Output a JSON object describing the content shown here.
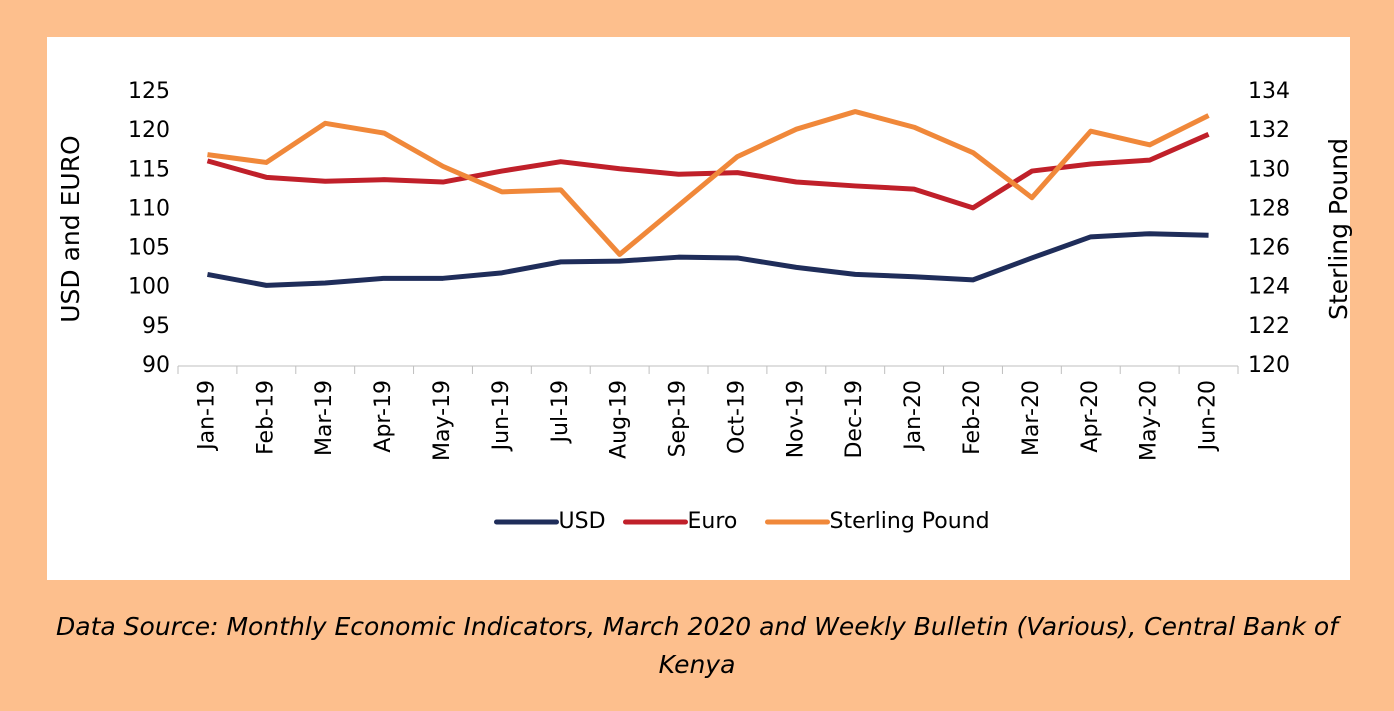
{
  "chart_data": {
    "type": "line",
    "y_label": "USD and EURO",
    "y2_label": "Sterling Pound",
    "categories": [
      "Jan-19",
      "Feb-19",
      "Mar-19",
      "Apr-19",
      "May-19",
      "Jun-19",
      "Jul-19",
      "Aug-19",
      "Sep-19",
      "Oct-19",
      "Nov-19",
      "Dec-19",
      "Jan-20",
      "Feb-20",
      "Mar-20",
      "Apr-20",
      "May-20",
      "Jun-20"
    ],
    "series": [
      {
        "name": "USD",
        "color": "#1f2d5a",
        "values": [
          101.7,
          100.3,
          100.6,
          101.2,
          101.2,
          101.9,
          103.3,
          103.4,
          103.9,
          103.8,
          102.6,
          101.7,
          101.4,
          101.0,
          103.8,
          106.5,
          106.9,
          106.7
        ]
      },
      {
        "name": "Euro",
        "color": "#c0202a",
        "values": [
          116.2,
          114.1,
          113.6,
          113.8,
          113.5,
          114.9,
          116.1,
          115.2,
          114.5,
          114.7,
          113.5,
          113.0,
          112.6,
          110.2,
          114.9,
          115.8,
          116.3,
          119.6
        ]
      },
      {
        "name": "Sterling Pound",
        "color": "#f0883a",
        "axis": "y2",
        "values": [
          130.8,
          130.4,
          132.4,
          131.9,
          130.2,
          128.9,
          129.0,
          125.7,
          128.2,
          130.7,
          132.1,
          133.0,
          132.2,
          130.9,
          128.6,
          132.0,
          131.3,
          132.8
        ]
      }
    ],
    "ylim": [
      90,
      125
    ],
    "yticks": [
      90,
      95,
      100,
      105,
      110,
      115,
      120,
      125
    ],
    "y2lim": [
      120,
      134
    ],
    "y2ticks": [
      120,
      122,
      124,
      126,
      128,
      130,
      132,
      134
    ],
    "legend": "bottom",
    "caption": "Data Source: Monthly Economic Indicators, March 2020 and Weekly Bulletin (Various), Central Bank of Kenya"
  }
}
